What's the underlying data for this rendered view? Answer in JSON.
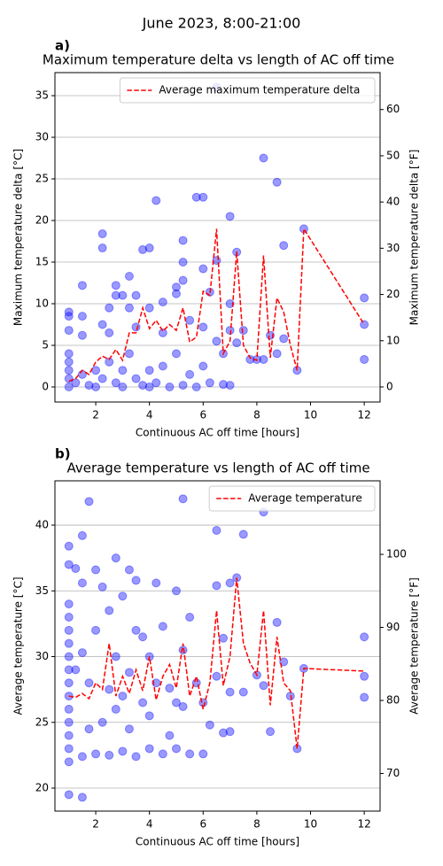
{
  "title": "June 2023, 8:00-21:00",
  "chart_data": [
    {
      "type": "scatter",
      "panel_label": "a)",
      "title": "Maximum temperature delta vs length of AC off time",
      "xlabel": "Continuous AC off time [hours]",
      "ylabel": "Maximum temperature delta [°C]",
      "y2label": "Maximum temperature delta [°F]",
      "xlim": [
        0.48,
        12.59
      ],
      "xticks": [
        2,
        4,
        6,
        8,
        10,
        12
      ],
      "ylim": [
        -1.81,
        37.77
      ],
      "yticks": [
        0,
        5,
        10,
        15,
        20,
        25,
        30,
        35
      ],
      "y2lim": [
        -3.26,
        67.99
      ],
      "y2ticks": [
        0,
        10,
        20,
        30,
        40,
        50,
        60
      ],
      "grid": true,
      "legend": "upper right",
      "series": [
        {
          "color": "#0000ff",
          "x": [
            6.5,
            8.25,
            8.75,
            5.75,
            6,
            4.25,
            7,
            9.75,
            2.25,
            2.25,
            5.25,
            3.75,
            4,
            9,
            7.25,
            6.5,
            5.25,
            6,
            3.25,
            1.5,
            2.75,
            5.25,
            3,
            3.5,
            12,
            4.5,
            5,
            6.25,
            2.75,
            1,
            1,
            1.5,
            2.5,
            3.25,
            4,
            5,
            7,
            1,
            1.5,
            2.25,
            2.5,
            3.5,
            4.5,
            5.5,
            6,
            6.5,
            6.75,
            7,
            7.5,
            8,
            8.5,
            8.75,
            9,
            9.5,
            12,
            12,
            7.75,
            8.25,
            1,
            1,
            1,
            1,
            1,
            1.25,
            1.5,
            1.75,
            2,
            2,
            2.25,
            2.5,
            2.75,
            3,
            3,
            3.25,
            3.5,
            3.75,
            4,
            4,
            4.25,
            4.5,
            4.75,
            5,
            5.25,
            5.5,
            5.75,
            6,
            6.25,
            6.75,
            7,
            7.25
          ],
          "values": [
            36,
            27.5,
            24.6,
            22.8,
            22.8,
            22.4,
            20.5,
            19,
            18.4,
            16.7,
            17.6,
            16.5,
            16.7,
            17,
            16.2,
            15.2,
            15,
            14.2,
            13.3,
            12.2,
            12.2,
            12.8,
            11,
            11,
            10.7,
            10.2,
            11.2,
            11.4,
            11,
            9,
            8.5,
            8.5,
            9.5,
            9.5,
            9.5,
            12,
            10,
            6.8,
            6.2,
            7.5,
            6.5,
            7.2,
            6.5,
            8,
            7.2,
            5.5,
            4,
            6.8,
            6.8,
            3.3,
            6.2,
            4,
            5.8,
            2,
            3.3,
            7.5,
            3.3,
            3.3,
            4,
            3,
            2,
            1,
            0,
            0.5,
            1.5,
            0.2,
            2,
            0,
            1,
            3,
            0.5,
            2,
            0,
            4,
            1,
            0.2,
            2,
            0,
            0.5,
            2.5,
            0,
            4,
            0.2,
            1.5,
            0,
            2.5,
            0.5,
            0.3,
            0.2,
            5.3
          ]
        },
        {
          "name": "Average maximum temperature delta",
          "color": "#ff0000",
          "type": "line",
          "x": [
            1,
            1.25,
            1.5,
            1.75,
            2,
            2.25,
            2.5,
            2.75,
            3,
            3.25,
            3.5,
            3.75,
            4,
            4.25,
            4.5,
            4.75,
            5,
            5.25,
            5.5,
            5.75,
            6,
            6.25,
            6.5,
            6.75,
            7,
            7.25,
            7.5,
            7.75,
            8,
            8.25,
            8.5,
            8.75,
            9,
            9.25,
            9.5,
            9.75,
            12
          ],
          "values": [
            0.7,
            1,
            2,
            1.5,
            3,
            3.7,
            3.3,
            4.5,
            3.2,
            6.5,
            6.5,
            9.5,
            7,
            8,
            6.7,
            7.5,
            6.8,
            9.5,
            5.4,
            6,
            11.5,
            11,
            19,
            4,
            5.5,
            16.3,
            5,
            3.5,
            3.2,
            15.8,
            3.5,
            10.7,
            9,
            5,
            2,
            19,
            7.5
          ]
        }
      ]
    },
    {
      "type": "scatter",
      "panel_label": "b)",
      "title": "Average temperature vs length of AC off time",
      "xlabel": "Continuous AC off time [hours]",
      "ylabel": "Average temperature [°C]",
      "y2label": "Average temperature [°F]",
      "xlim": [
        0.48,
        12.59
      ],
      "xticks": [
        2,
        4,
        6,
        8,
        10,
        12
      ],
      "ylim": [
        18.25,
        43.37
      ],
      "yticks": [
        20,
        25,
        30,
        35,
        40
      ],
      "y2lim": [
        64.85,
        110.07
      ],
      "y2ticks": [
        70,
        80,
        90,
        100
      ],
      "grid": true,
      "legend": "upper right",
      "series": [
        {
          "color": "#0000ff",
          "x": [
            5.25,
            1.75,
            8.25,
            1.5,
            6.5,
            7.5,
            1,
            1,
            1.25,
            1.5,
            2,
            2.75,
            3.25,
            3.5,
            4.25,
            5,
            6.5,
            7,
            7.25,
            1,
            1,
            1,
            1,
            1,
            1,
            1,
            1,
            1,
            1,
            1,
            1,
            1,
            1,
            1.5,
            1.25,
            1.5,
            1.75,
            2,
            2.25,
            2.5,
            2.75,
            3,
            3.25,
            3.5,
            3.75,
            4,
            4.25,
            4.5,
            4.75,
            5,
            5.25,
            5.5,
            5.75,
            6,
            6.25,
            6.5,
            6.75,
            7,
            7.5,
            8,
            8.25,
            8.5,
            8.75,
            9,
            9.25,
            9.5,
            9.75,
            12,
            12,
            12,
            1.5,
            2,
            2.5,
            3,
            3.5,
            4,
            4.5,
            5,
            5.5,
            6,
            6.75,
            7,
            2.25,
            2.75,
            3.25,
            4,
            4.75,
            5.25,
            1.75,
            2.5,
            3,
            3.75
          ],
          "values": [
            42,
            41.8,
            41,
            39.2,
            39.6,
            39.3,
            38.4,
            37,
            36.7,
            35.6,
            36.6,
            37.5,
            36.6,
            35.8,
            35.6,
            35,
            35.4,
            35.6,
            36,
            34,
            33,
            32,
            31,
            30,
            29,
            28,
            27,
            26,
            25,
            24,
            23,
            22,
            19.5,
            19.3,
            29,
            30.3,
            28,
            32,
            35.3,
            33.5,
            30,
            34.6,
            28.8,
            32,
            31.5,
            30,
            28,
            32.3,
            27.6,
            26.5,
            30.5,
            33,
            28,
            26.5,
            24.8,
            28.5,
            31.4,
            27.3,
            27.3,
            28.6,
            27.8,
            24.3,
            32.6,
            29.6,
            27,
            23,
            29.1,
            31.5,
            28.5,
            26.9,
            22.4,
            22.6,
            22.5,
            22.8,
            22.4,
            23,
            22.6,
            23,
            22.6,
            22.6,
            24.2,
            24.3,
            25,
            26,
            24.5,
            25.5,
            24,
            26.2,
            24.5,
            27.5,
            27,
            26.5
          ]
        },
        {
          "name": "Average temperature",
          "color": "#ff0000",
          "type": "line",
          "x": [
            1,
            1.25,
            1.5,
            1.75,
            2,
            2.25,
            2.5,
            2.75,
            3,
            3.25,
            3.5,
            3.75,
            4,
            4.25,
            4.5,
            4.75,
            5,
            5.25,
            5.5,
            5.75,
            6,
            6.25,
            6.5,
            6.75,
            7,
            7.25,
            7.5,
            7.75,
            8,
            8.25,
            8.5,
            8.75,
            9,
            9.25,
            9.5,
            9.75,
            12
          ],
          "values": [
            27,
            26.9,
            27.2,
            26.8,
            28,
            27.5,
            31,
            27,
            28.5,
            27.2,
            29,
            27.4,
            30,
            26.7,
            28.5,
            29.4,
            27.6,
            31,
            27,
            28.5,
            26,
            28,
            33.5,
            27.8,
            30,
            36,
            31,
            29.5,
            28.6,
            33.5,
            26.3,
            31.5,
            28,
            27.4,
            23,
            29.1,
            28.9
          ]
        }
      ]
    }
  ]
}
